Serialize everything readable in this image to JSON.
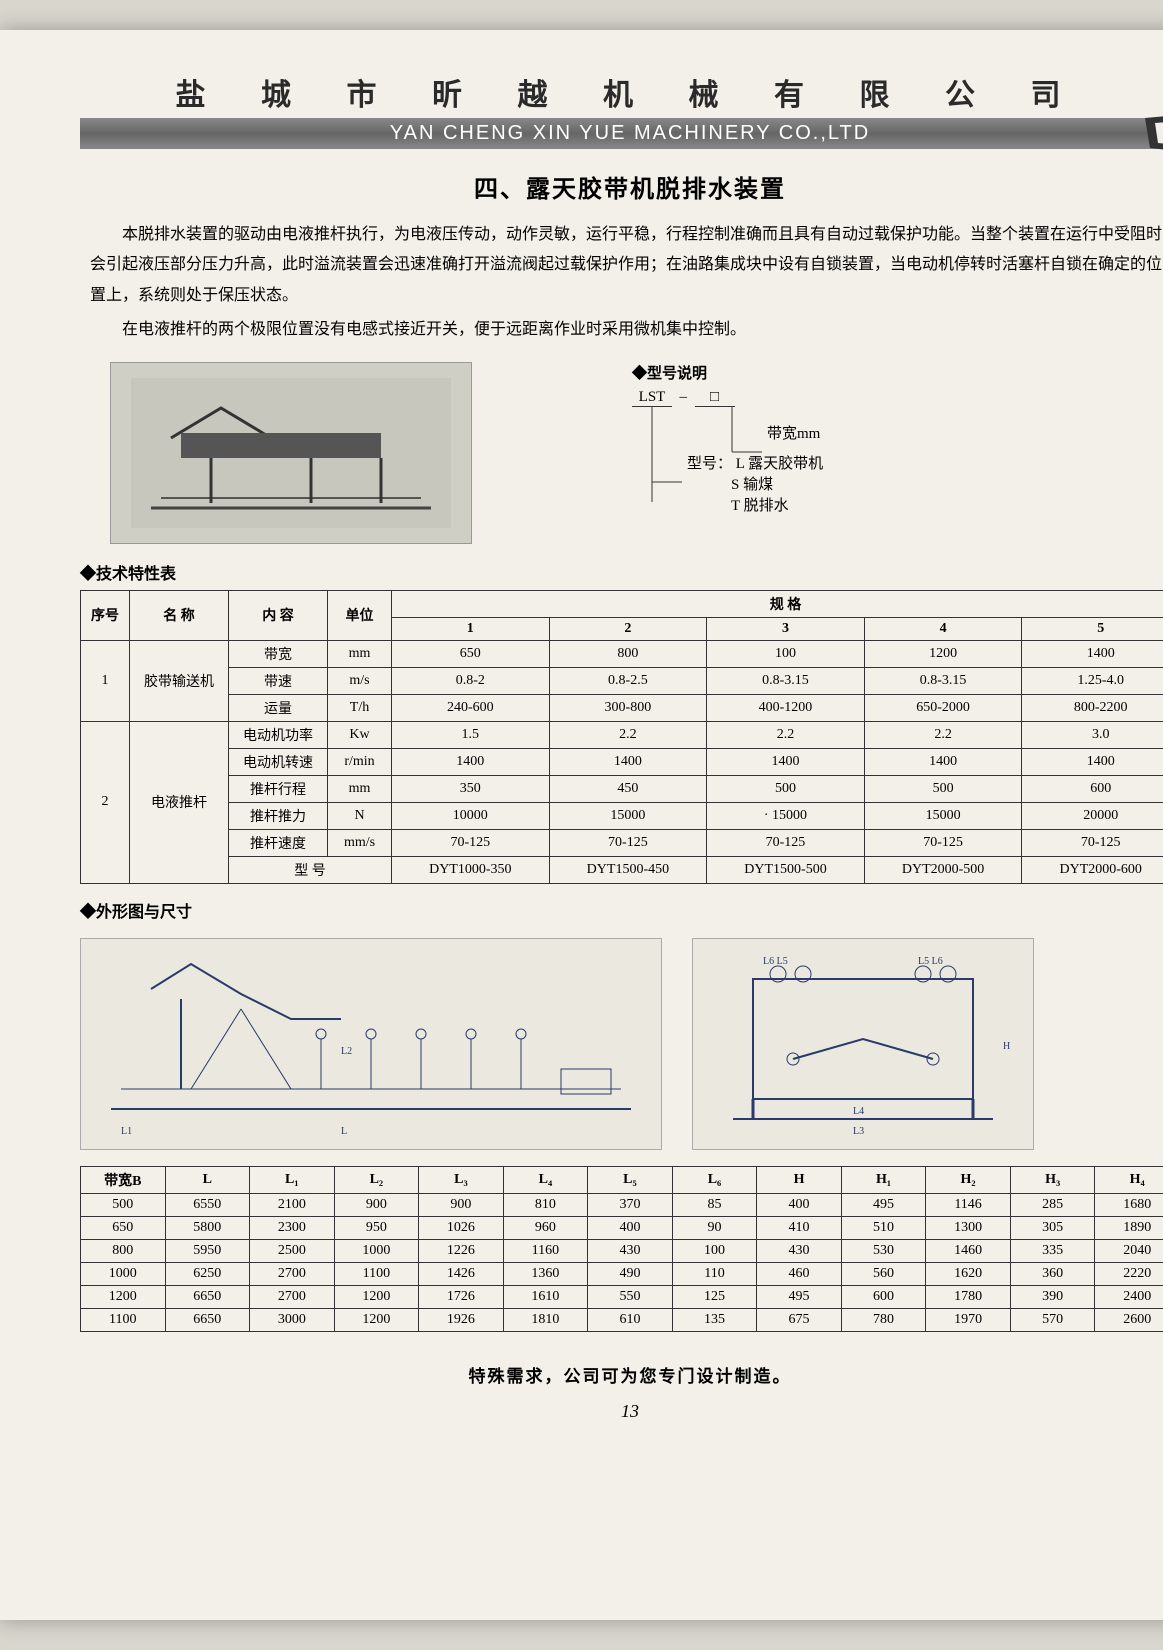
{
  "header": {
    "cn": "盐 城 市 昕 越 机 械 有 限 公 司",
    "en": "YAN CHENG XIN YUE MACHINERY CO.,LTD"
  },
  "section_title": "四、露天胶带机脱排水装置",
  "para1": "本脱排水装置的驱动由电液推杆执行，为电液压传动，动作灵敏，运行平稳，行程控制准确而且具有自动过载保护功能。当整个装置在运行中受阻时会引起液压部分压力升高，此时溢流装置会迅速准确打开溢流阀起过载保护作用；在油路集成块中设有自锁装置，当电动机停转时活塞杆自锁在确定的位置上，系统则处于保压状态。",
  "para2": "在电液推杆的两个极限位置没有电感式接近开关，便于远距离作业时采用微机集中控制。",
  "model": {
    "title": "◆型号说明",
    "prefix": "LST",
    "dash": "–",
    "box": "□",
    "line1": "带宽mm",
    "line2": "型号：",
    "l2a": "L 露天胶带机",
    "l2b": "S 输煤",
    "l2c": "T 脱排水"
  },
  "techTitle": "◆技术特性表",
  "techHdr": {
    "c0": "序号",
    "c1": "名 称",
    "c2": "内 容",
    "c3": "单位",
    "spec": "规        格",
    "n1": "1",
    "n2": "2",
    "n3": "3",
    "n4": "4",
    "n5": "5"
  },
  "techRows": [
    {
      "a": "",
      "b": "",
      "c": "带宽",
      "u": "mm",
      "v": [
        "650",
        "800",
        "100",
        "1200",
        "1400"
      ]
    },
    {
      "a": "1",
      "b": "胶带输送机",
      "c": "带速",
      "u": "m/s",
      "v": [
        "0.8-2",
        "0.8-2.5",
        "0.8-3.15",
        "0.8-3.15",
        "1.25-4.0"
      ]
    },
    {
      "a": "",
      "b": "",
      "c": "运量",
      "u": "T/h",
      "v": [
        "240-600",
        "300-800",
        "400-1200",
        "650-2000",
        "800-2200"
      ]
    },
    {
      "a": "",
      "b": "",
      "c": "电动机功率",
      "u": "Kw",
      "v": [
        "1.5",
        "2.2",
        "2.2",
        "2.2",
        "3.0"
      ]
    },
    {
      "a": "",
      "b": "",
      "c": "电动机转速",
      "u": "r/min",
      "v": [
        "1400",
        "1400",
        "1400",
        "1400",
        "1400"
      ]
    },
    {
      "a": "2",
      "b": "电液推杆",
      "c": "推杆行程",
      "u": "mm",
      "v": [
        "350",
        "450",
        "500",
        "500",
        "600"
      ]
    },
    {
      "a": "",
      "b": "",
      "c": "推杆推力",
      "u": "N",
      "v": [
        "10000",
        "15000",
        "· 15000",
        "15000",
        "20000"
      ]
    },
    {
      "a": "",
      "b": "",
      "c": "推杆速度",
      "u": "mm/s",
      "v": [
        "70-125",
        "70-125",
        "70-125",
        "70-125",
        "70-125"
      ]
    },
    {
      "a": "",
      "b": "",
      "c": "型   号",
      "u": "",
      "v": [
        "DYT1000-350",
        "DYT1500-450",
        "DYT1500-500",
        "DYT2000-500",
        "DYT2000-600"
      ],
      "span2": true
    }
  ],
  "dimTitle": "◆外形图与尺寸",
  "dimHdr": [
    "带宽B",
    "L",
    "L₁",
    "L₂",
    "L₃",
    "L₄",
    "L₅",
    "L₆",
    "H",
    "H₁",
    "H₂",
    "H₃",
    "H₄"
  ],
  "dimRows": [
    [
      "500",
      "6550",
      "2100",
      "900",
      "900",
      "810",
      "370",
      "85",
      "400",
      "495",
      "1146",
      "285",
      "1680"
    ],
    [
      "650",
      "5800",
      "2300",
      "950",
      "1026",
      "960",
      "400",
      "90",
      "410",
      "510",
      "1300",
      "305",
      "1890"
    ],
    [
      "800",
      "5950",
      "2500",
      "1000",
      "1226",
      "1160",
      "430",
      "100",
      "430",
      "530",
      "1460",
      "335",
      "2040"
    ],
    [
      "1000",
      "6250",
      "2700",
      "1100",
      "1426",
      "1360",
      "490",
      "110",
      "460",
      "560",
      "1620",
      "360",
      "2220"
    ],
    [
      "1200",
      "6650",
      "2700",
      "1200",
      "1726",
      "1610",
      "550",
      "125",
      "495",
      "600",
      "1780",
      "390",
      "2400"
    ],
    [
      "1100",
      "6650",
      "3000",
      "1200",
      "1926",
      "1810",
      "610",
      "135",
      "675",
      "780",
      "1970",
      "570",
      "2600"
    ]
  ],
  "footer": "特殊需求，公司可为您专门设计制造。",
  "pageNum": "13"
}
